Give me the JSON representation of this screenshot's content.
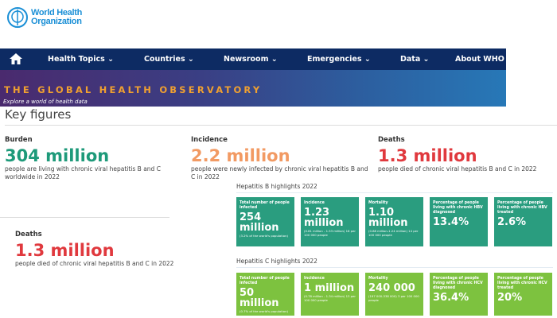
{
  "logo": {
    "text_line1": "World Health",
    "text_line2": "Organization"
  },
  "nav": {
    "home_icon": "home-icon",
    "items": [
      "Health Topics ⌄",
      "Countries ⌄",
      "Newsroom ⌄",
      "Emergencies ⌄",
      "Data ⌄",
      "About WHO ⌄"
    ]
  },
  "banner": {
    "title": "THE GLOBAL HEALTH OBSERVATORY",
    "subtitle": "Explore a world of health data"
  },
  "key_figures": {
    "title": "Key figures",
    "burden": {
      "label": "Burden",
      "value": "304 million",
      "desc": "people are living with chronic viral hepatitis B and C worldwide in 2022",
      "color": "#1e9a7a"
    },
    "incidence": {
      "label": "Incidence",
      "value": "2.2 million",
      "desc": "people were newly infected by chronic viral hepatitis B and C in 2022",
      "color": "#f29a63"
    },
    "deaths": {
      "label": "Deaths",
      "value": "1.3 million",
      "desc": "people died of chronic viral hepatitis B and C in 2022",
      "color": "#e0393e"
    },
    "deaths2": {
      "label": "Deaths",
      "value": "1.3 million",
      "desc": "people died of chronic viral hepatitis B and C in 2022"
    }
  },
  "hep_b": {
    "title": "Hepatitis B highlights 2022",
    "color": "#2a9d7f",
    "tiles": [
      {
        "title": "Total number of people infected",
        "value": "254 million",
        "note": "(3.2% of the world's population)"
      },
      {
        "title": "Incidence",
        "value": "1.23 million",
        "note": "(0.81 million - 1.53 million) 16 per 100 000 people"
      },
      {
        "title": "Mortality",
        "value": "1.10 million",
        "note": "(0.88 million-1.24 million) 14 per 100 000 people"
      },
      {
        "title": "Percentage of people living with chronic HBV diagnosed",
        "value": "13.4%",
        "note": ""
      },
      {
        "title": "Percentage of people living with chronic HBV treated",
        "value": "2.6%",
        "note": ""
      }
    ]
  },
  "hep_c": {
    "title": "Hepatitis C highlights 2022",
    "color": "#7dc23f",
    "tiles": [
      {
        "title": "Total number of people infected",
        "value": "50 million",
        "note": "(0.7% of the world's population)"
      },
      {
        "title": "Incidence",
        "value": "1 million",
        "note": "(0.78 million - 1.34 million) 13 per 100 000 people"
      },
      {
        "title": "Mortality",
        "value": "240 000",
        "note": "(197 000-338 000) 3 per 100 000 people"
      },
      {
        "title": "Percentage of people living with chronic HCV diagnosed",
        "value": "36.4%",
        "note": ""
      },
      {
        "title": "Percentage of people living with chronic HCV treated",
        "value": "20%",
        "note": ""
      }
    ]
  }
}
